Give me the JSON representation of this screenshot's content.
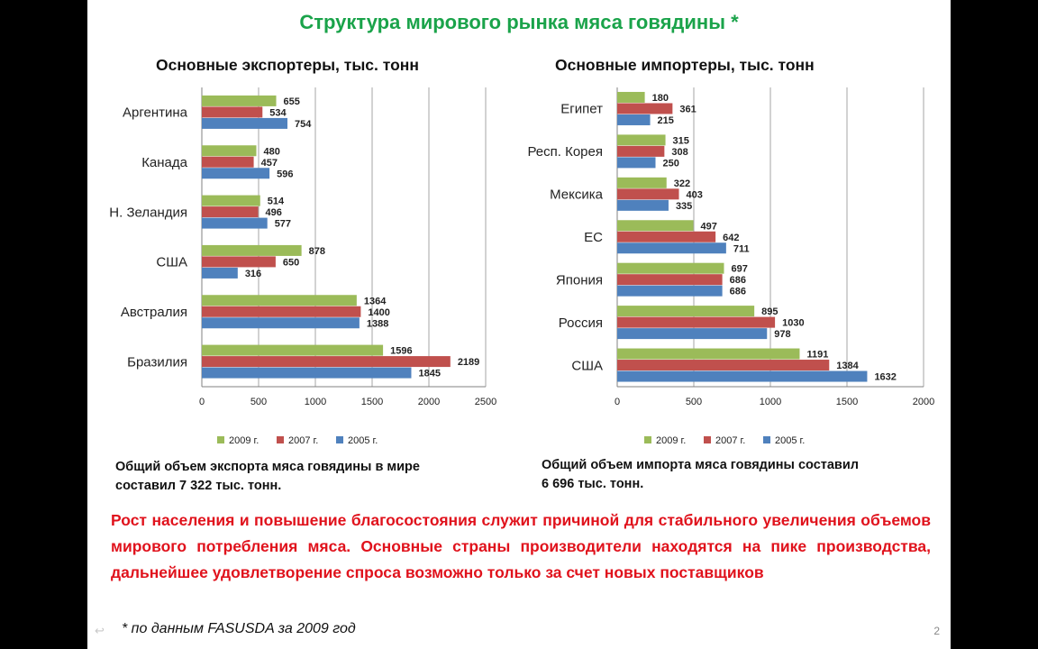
{
  "slide": {
    "title": "Структура мирового рынка мяса говядины *",
    "page_number": "2",
    "nav_icon": "back-arrow-icon"
  },
  "chart_data": [
    {
      "type": "bar",
      "orientation": "horizontal",
      "title": "Основные экспортеры, тыс. тонн",
      "categories": [
        "Аргентина",
        "Канада",
        "Н. Зеландия",
        "США",
        "Австралия",
        "Бразилия"
      ],
      "series": [
        {
          "name": "2009 г.",
          "color": "#9bbb59",
          "values": [
            655,
            480,
            514,
            878,
            1364,
            1596
          ]
        },
        {
          "name": "2007 г.",
          "color": "#c0504d",
          "values": [
            534,
            457,
            496,
            650,
            1400,
            2189
          ]
        },
        {
          "name": "2005 г.",
          "color": "#4f81bd",
          "values": [
            754,
            596,
            577,
            316,
            1388,
            1845
          ]
        }
      ],
      "xlim": [
        0,
        2500
      ],
      "xticks": [
        "0",
        "500",
        "1000",
        "1500",
        "2000",
        "2500"
      ],
      "grid": true,
      "legend": "bottom",
      "summary_line1": "Общий объем экспорта мяса говядины в мире",
      "summary_line2": "составил 7 322 тыс. тонн."
    },
    {
      "type": "bar",
      "orientation": "horizontal",
      "title": "Основные импортеры, тыс. тонн",
      "categories": [
        "Египет",
        "Респ. Корея",
        "Мексика",
        "ЕС",
        "Япония",
        "Россия",
        "США"
      ],
      "series": [
        {
          "name": "2009 г.",
          "color": "#9bbb59",
          "values": [
            180,
            315,
            322,
            497,
            697,
            895,
            1191
          ]
        },
        {
          "name": "2007 г.",
          "color": "#c0504d",
          "values": [
            361,
            308,
            403,
            642,
            686,
            1030,
            1384
          ]
        },
        {
          "name": "2005 г.",
          "color": "#4f81bd",
          "values": [
            215,
            250,
            335,
            711,
            686,
            978,
            1632
          ]
        }
      ],
      "xlim": [
        0,
        2000
      ],
      "xticks": [
        "0",
        "500",
        "1000",
        "1500",
        "2000"
      ],
      "grid": true,
      "legend": "bottom",
      "summary_line1": "Общий объем  импорта мяса говядины составил",
      "summary_line2": " 6 696  тыс. тонн."
    }
  ],
  "conclusion": "Рост населения и повышение благосостояния служит причиной для стабильного увеличения объемов мирового потребления мяса. Основные страны производители находятся на пике производства, дальнейшее удовлетворение спроса возможно только за счет новых  поставщиков",
  "footnote": "* по данным FASUSDA  за 2009 год"
}
